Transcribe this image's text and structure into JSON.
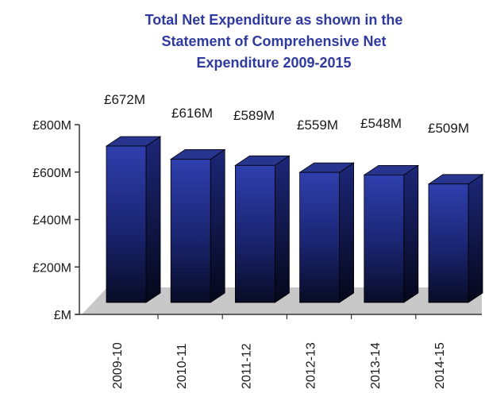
{
  "chart_data": {
    "type": "bar",
    "title_lines": [
      "Total Net Expenditure as shown in the",
      "Statement of Comprehensive Net",
      "Expenditure 2009-2015"
    ],
    "categories": [
      "2009-10",
      "2010-11",
      "2011-12",
      "2012-13",
      "2013-14",
      "2014-15"
    ],
    "values": [
      672,
      616,
      589,
      559,
      548,
      509
    ],
    "data_labels": [
      "£672M",
      "£616M",
      "£589M",
      "£559M",
      "£548M",
      "£509M"
    ],
    "y_ticks": [
      0,
      200,
      400,
      600,
      800
    ],
    "y_tick_labels": [
      "£M",
      "£200M",
      "£400M",
      "£600M",
      "£800M"
    ],
    "ylim": [
      0,
      800
    ],
    "grid": false,
    "legend": "none",
    "bar_style": "3d",
    "colors": {
      "title": "#2e3a9e",
      "bar_top": "#2f3fae",
      "bar_bottom": "#080c26",
      "floor": "#c8c8c8"
    }
  }
}
